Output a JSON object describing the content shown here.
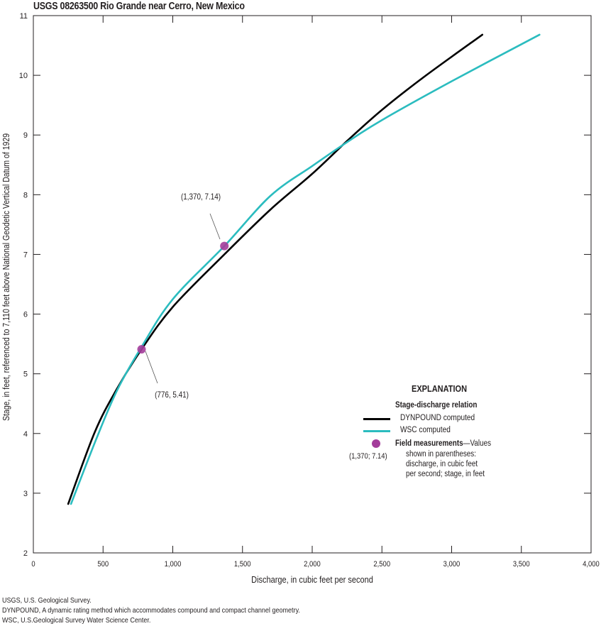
{
  "chart_data": {
    "type": "line",
    "title": "USGS 08263500 Rio Grande near Cerro, New Mexico",
    "xlabel": "Discharge, in cubic feet per second",
    "ylabel": "Stage, in feet, referenced to 7,110 feet above National Geodetic Vertical Datum of 1929",
    "xlim": [
      0,
      4000
    ],
    "ylim": [
      2,
      11
    ],
    "x_ticks": [
      0,
      500,
      1000,
      1500,
      2000,
      2500,
      3000,
      3500,
      4000
    ],
    "x_tick_labels": [
      "0",
      "500",
      "1,000",
      "1,500",
      "2,000",
      "2,500",
      "3,000",
      "3,500",
      "4,000"
    ],
    "y_ticks": [
      2,
      3,
      4,
      5,
      6,
      7,
      8,
      9,
      10,
      11
    ],
    "y_tick_labels": [
      "2",
      "3",
      "4",
      "5",
      "6",
      "7",
      "8",
      "9",
      "10",
      "11"
    ],
    "grid": false,
    "legend_position": "lower right",
    "series": [
      {
        "name": "DYNPOUND computed",
        "color": "#000000",
        "type": "line",
        "points": [
          [
            250,
            2.82
          ],
          [
            440,
            4.02
          ],
          [
            600,
            4.75
          ],
          [
            776,
            5.41
          ],
          [
            1000,
            6.12
          ],
          [
            1370,
            7.0
          ],
          [
            1700,
            7.75
          ],
          [
            2000,
            8.35
          ],
          [
            2250,
            8.9
          ],
          [
            2500,
            9.42
          ],
          [
            2800,
            9.97
          ],
          [
            3220,
            10.68
          ]
        ]
      },
      {
        "name": "WSC computed",
        "color": "#2bbcbf",
        "type": "line",
        "points": [
          [
            270,
            2.82
          ],
          [
            450,
            3.9
          ],
          [
            600,
            4.72
          ],
          [
            776,
            5.45
          ],
          [
            1000,
            6.25
          ],
          [
            1370,
            7.14
          ],
          [
            1700,
            7.98
          ],
          [
            2000,
            8.48
          ],
          [
            2250,
            8.88
          ],
          [
            2500,
            9.25
          ],
          [
            3000,
            9.9
          ],
          [
            3630,
            10.68
          ]
        ]
      },
      {
        "name": "Field measurements",
        "color": "#a43d9b",
        "type": "scatter",
        "points": [
          [
            776,
            5.41
          ],
          [
            1370,
            7.14
          ]
        ]
      }
    ],
    "annotations": [
      {
        "text": "(1,370, 7.14)",
        "x": 1370,
        "y": 7.14
      },
      {
        "text": "(776, 5.41)",
        "x": 776,
        "y": 5.41
      }
    ]
  },
  "legend": {
    "title": "EXPLANATION",
    "subtitle": "Stage-discharge relation",
    "items": [
      {
        "label": "DYNPOUND computed",
        "color": "#000000"
      },
      {
        "label": "WSC computed",
        "color": "#2bbcbf"
      }
    ],
    "field": {
      "label_bold": "Field measurements",
      "label_rest": "—Values",
      "lines": [
        "shown in parentheses:",
        "discharge, in cubic feet",
        "per second; stage, in feet"
      ],
      "example": "(1,370; 7.14)",
      "color": "#a43d9b"
    }
  },
  "footnotes": [
    "USGS, U.S. Geological Survey.",
    "DYNPOUND, A dynamic rating method which accommodates compound and compact channel geometry.",
    "WSC, U.S.Geological Survey Water Science Center."
  ]
}
